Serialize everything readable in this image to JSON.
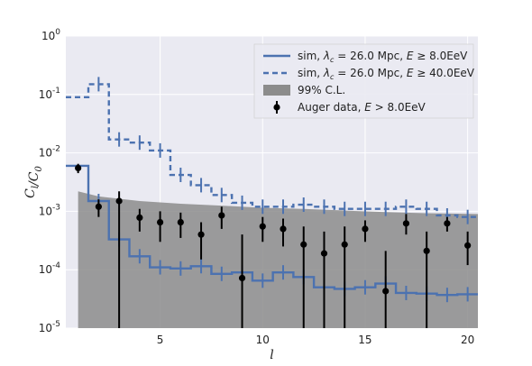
{
  "chart_data": {
    "type": "line",
    "xlabel": "l",
    "ylabel": "C_l/C_0",
    "xlim": [
      0.4,
      20.5
    ],
    "ylim": [
      1e-05,
      1
    ],
    "yscale": "log",
    "grid": true,
    "legend_position": "top-right",
    "x_ticks": [
      {
        "v": 5,
        "label": "5"
      },
      {
        "v": 10,
        "label": "10"
      },
      {
        "v": 15,
        "label": "15"
      },
      {
        "v": 20,
        "label": "20"
      }
    ],
    "y_ticks": [
      {
        "v": 1,
        "base": "10",
        "exp": "0"
      },
      {
        "v": 0.1,
        "base": "10",
        "exp": "-1"
      },
      {
        "v": 0.01,
        "base": "10",
        "exp": "-2"
      },
      {
        "v": 0.001,
        "base": "10",
        "exp": "-3"
      },
      {
        "v": 0.0001,
        "base": "10",
        "exp": "-4"
      },
      {
        "v": 1e-05,
        "base": "10",
        "exp": "-5"
      }
    ],
    "colors": {
      "background": "#eaeaf2",
      "series": "#4c72b0",
      "band": "#8c8c8c",
      "points": "#000000"
    },
    "series": [
      {
        "name": "sim, λc = 26.0 Mpc, E ≥ 8.0EeV",
        "style": "solid step",
        "l": [
          1,
          2,
          3,
          4,
          5,
          6,
          7,
          8,
          9,
          10,
          11,
          12,
          13,
          14,
          15,
          16,
          17,
          18,
          19,
          20
        ],
        "values": [
          0.006,
          0.0015,
          0.00033,
          0.00017,
          0.00011,
          0.000105,
          0.000115,
          8.5e-05,
          9e-05,
          6.5e-05,
          9e-05,
          7.5e-05,
          5e-05,
          4.7e-05,
          5e-05,
          5.8e-05,
          4e-05,
          3.9e-05,
          3.7e-05,
          3.8e-05
        ]
      },
      {
        "name": "sim, λc = 26.0 Mpc, E ≥ 40.0EeV",
        "style": "dashed step",
        "l": [
          1,
          2,
          3,
          4,
          5,
          6,
          7,
          8,
          9,
          10,
          11,
          12,
          13,
          14,
          15,
          16,
          17,
          18,
          19,
          20
        ],
        "values": [
          0.09,
          0.15,
          0.017,
          0.015,
          0.011,
          0.0042,
          0.0028,
          0.0019,
          0.0014,
          0.0012,
          0.0012,
          0.0013,
          0.0012,
          0.0011,
          0.0011,
          0.0011,
          0.0012,
          0.0011,
          0.00085,
          0.0008
        ]
      }
    ],
    "band": {
      "name": "99% C.L.",
      "l_start": 1,
      "l_end": 20.5,
      "upper": [
        [
          1,
          0.0022
        ],
        [
          2,
          0.0018
        ],
        [
          4,
          0.0015
        ],
        [
          6,
          0.00135
        ],
        [
          8,
          0.00125
        ],
        [
          10,
          0.00115
        ],
        [
          12,
          0.0011
        ],
        [
          14,
          0.00103
        ],
        [
          16,
          0.00097
        ],
        [
          18,
          0.00093
        ],
        [
          20.5,
          0.0009
        ]
      ]
    },
    "points": {
      "name": "Auger data, E > 8.0EeV",
      "l": [
        1,
        2,
        3,
        4,
        5,
        6,
        7,
        8,
        9,
        10,
        11,
        12,
        13,
        14,
        15,
        16,
        17,
        18,
        19,
        20
      ],
      "values": [
        0.0055,
        0.0012,
        0.0015,
        0.00078,
        0.00065,
        0.00065,
        0.0004,
        0.00085,
        7.2e-05,
        0.00055,
        0.0005,
        0.00027,
        0.00019,
        0.00027,
        0.0005,
        4.3e-05,
        0.00062,
        0.00021,
        0.00062,
        0.00026
      ],
      "err_low": [
        0.0045,
        0.0008,
        1e-05,
        0.00045,
        0.0003,
        0.00035,
        0.00015,
        0.0005,
        1e-05,
        0.0003,
        0.00025,
        1e-05,
        1e-05,
        1e-05,
        0.0003,
        1e-05,
        0.0004,
        1e-05,
        0.00045,
        0.00012
      ],
      "err_high": [
        0.0065,
        0.0016,
        0.0022,
        0.0011,
        0.001,
        0.00095,
        0.00065,
        0.0012,
        0.0004,
        0.0008,
        0.00075,
        0.00055,
        0.00045,
        0.00055,
        0.0007,
        0.00021,
        0.0009,
        0.00045,
        0.0008,
        0.00045
      ]
    },
    "legend": [
      {
        "prefix": "sim, ",
        "lambda_value": "= 26.0",
        "unit": " Mpc, ",
        "energy": "E ≥ 8.0EeV",
        "marker": "solid"
      },
      {
        "prefix": "sim, ",
        "lambda_value": "= 26.0",
        "unit": " Mpc, ",
        "energy": "E ≥ 40.0EeV",
        "marker": "dashed"
      },
      {
        "text": "99% C.L.",
        "marker": "band"
      },
      {
        "prefix": "Auger data, ",
        "energy": "E > 8.0EeV",
        "marker": "point"
      }
    ]
  }
}
